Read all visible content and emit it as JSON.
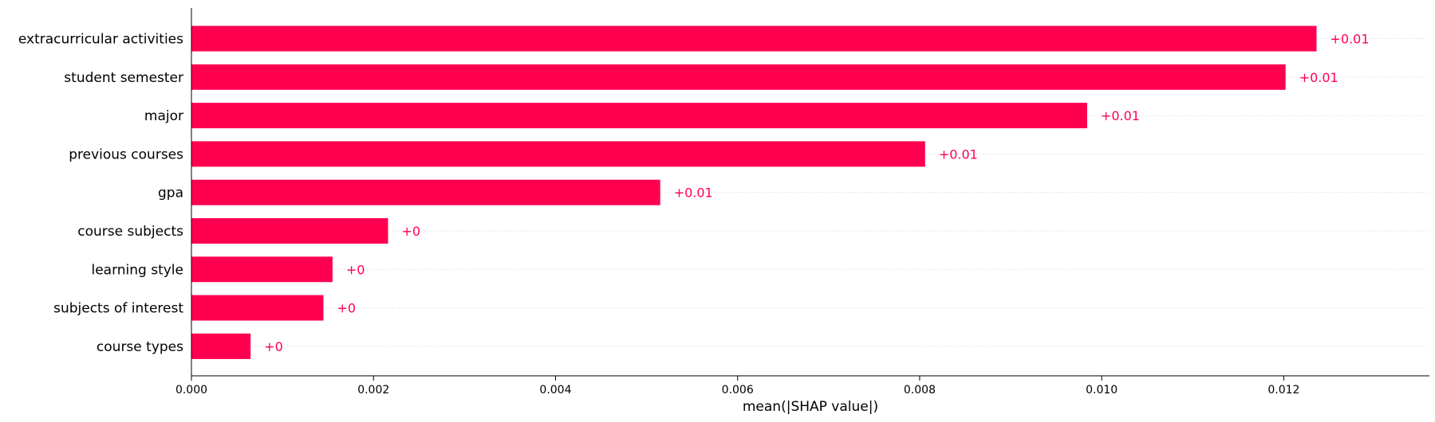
{
  "chart_data": {
    "type": "bar",
    "orientation": "horizontal",
    "title": "",
    "xlabel": "mean(|SHAP value|)",
    "ylabel": "",
    "xlim": [
      0,
      0.0136
    ],
    "xticks": [
      0.0,
      0.002,
      0.004,
      0.006,
      0.008,
      0.01,
      0.012
    ],
    "xtick_labels": [
      "0.000",
      "0.002",
      "0.004",
      "0.006",
      "0.008",
      "0.010",
      "0.012"
    ],
    "grid": "dotted row guides",
    "bar_color": "#ff0051",
    "categories": [
      "extracurricular activities",
      "student semester",
      "major",
      "previous courses",
      "gpa",
      "course subjects",
      "learning style",
      "subjects of interest",
      "course types"
    ],
    "values": [
      0.01236,
      0.01202,
      0.00984,
      0.00806,
      0.00515,
      0.00216,
      0.00155,
      0.00145,
      0.00065
    ],
    "data_labels": [
      "+0.01",
      "+0.01",
      "+0.01",
      "+0.01",
      "+0.01",
      "+0",
      "+0",
      "+0",
      "+0"
    ]
  }
}
